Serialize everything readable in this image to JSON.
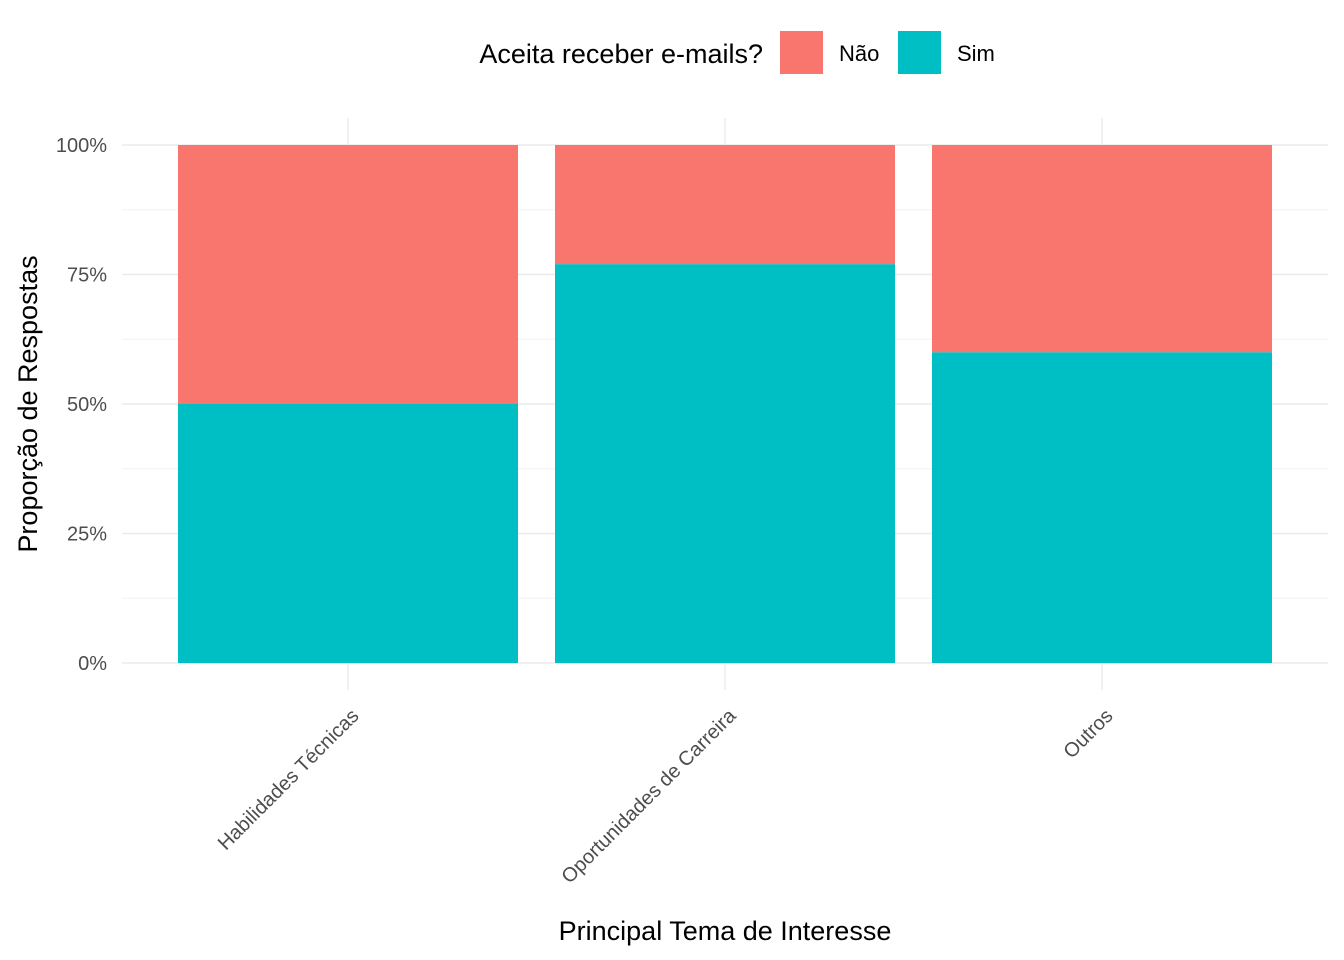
{
  "chart_data": {
    "type": "bar",
    "stacked": true,
    "normalized": true,
    "categories": [
      "Habilidades Técnicas",
      "Oportunidades de Carreira",
      "Outros"
    ],
    "series": [
      {
        "name": "Não",
        "values": [
          0.5,
          0.23,
          0.4
        ],
        "color": "#F8766D"
      },
      {
        "name": "Sim",
        "values": [
          0.5,
          0.77,
          0.6
        ],
        "color": "#00BFC4"
      }
    ],
    "xlabel": "Principal Tema de Interesse",
    "ylabel": "Proporção de Respostas",
    "ylim": [
      0,
      1
    ],
    "y_ticks": [
      0,
      0.25,
      0.5,
      0.75,
      1
    ],
    "y_tick_labels": [
      "0%",
      "25%",
      "50%",
      "75%",
      "100%"
    ],
    "grid": true,
    "legend": {
      "title": "Aceita receber e-mails?",
      "position": "top",
      "entries": [
        "Não",
        "Sim"
      ]
    }
  }
}
